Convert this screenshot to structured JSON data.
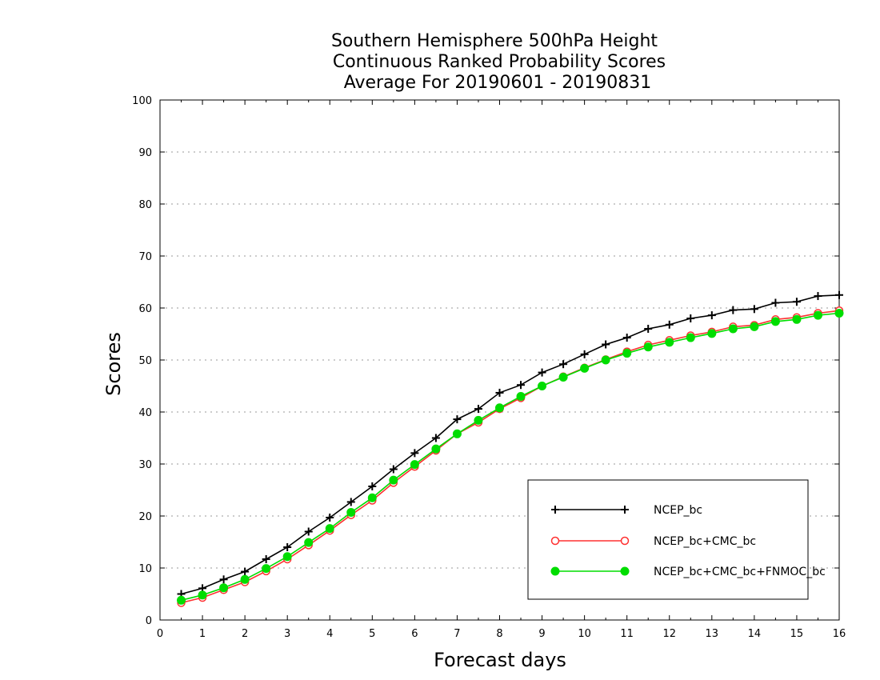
{
  "chart_data": {
    "type": "line",
    "title": [
      "Southern Hemisphere 500hPa Height",
      "Continuous Ranked Probability Scores",
      "Average For 20190601 - 20190831"
    ],
    "xlabel": "Forecast days",
    "ylabel": "Scores",
    "xlim": [
      0,
      16
    ],
    "ylim": [
      0,
      100
    ],
    "xticks": [
      "0",
      "1",
      "2",
      "3",
      "4",
      "5",
      "6",
      "7",
      "8",
      "9",
      "10",
      "11",
      "12",
      "13",
      "14",
      "15",
      "16"
    ],
    "yticks": [
      "0",
      "10",
      "20",
      "30",
      "40",
      "50",
      "60",
      "70",
      "80",
      "90",
      "100"
    ],
    "grid": "horizontal dotted",
    "legend_position": "bottom-right",
    "x": [
      0.5,
      1,
      1.5,
      2,
      2.5,
      3,
      3.5,
      4,
      4.5,
      5,
      5.5,
      6,
      6.5,
      7,
      7.5,
      8,
      8.5,
      9,
      9.5,
      10,
      10.5,
      11,
      11.5,
      12,
      12.5,
      13,
      13.5,
      14,
      14.5,
      15,
      15.5,
      16
    ],
    "series": [
      {
        "name": "NCEP_bc",
        "color": "#000000",
        "marker": "plus",
        "values": [
          5.0,
          6.1,
          7.8,
          9.3,
          11.7,
          14.0,
          17.0,
          19.7,
          22.7,
          25.7,
          29.0,
          32.1,
          35.0,
          38.6,
          40.6,
          43.7,
          45.2,
          47.6,
          49.2,
          51.1,
          53.0,
          54.3,
          56.0,
          56.8,
          58.0,
          58.6,
          59.6,
          59.8,
          61.0,
          61.2,
          62.3,
          62.5
        ]
      },
      {
        "name": "NCEP_bc+CMC_bc",
        "color": "#ff3030",
        "marker": "open-circle",
        "values": [
          3.3,
          4.3,
          5.8,
          7.3,
          9.4,
          11.7,
          14.4,
          17.2,
          20.2,
          23.0,
          26.4,
          29.5,
          32.6,
          35.8,
          38.0,
          40.6,
          42.7,
          45.0,
          46.8,
          48.5,
          50.1,
          51.6,
          52.9,
          53.8,
          54.7,
          55.4,
          56.4,
          56.7,
          57.8,
          58.2,
          59.0,
          59.5
        ]
      },
      {
        "name": "NCEP_bc+CMC_bc+FNMOC_bc",
        "color": "#00dd00",
        "marker": "filled-circle",
        "values": [
          3.8,
          4.8,
          6.2,
          7.8,
          9.9,
          12.2,
          14.9,
          17.6,
          20.7,
          23.5,
          26.9,
          29.9,
          32.9,
          35.8,
          38.4,
          40.8,
          43.0,
          45.0,
          46.7,
          48.4,
          50.0,
          51.3,
          52.5,
          53.4,
          54.3,
          55.1,
          56.0,
          56.4,
          57.4,
          57.8,
          58.6,
          59.0
        ]
      }
    ]
  }
}
